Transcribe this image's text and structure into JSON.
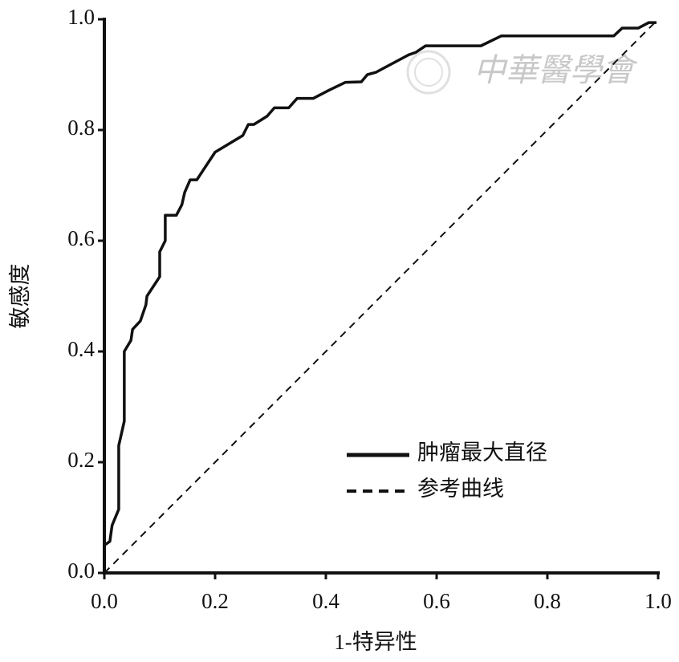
{
  "chart_data": {
    "type": "line",
    "xlabel": "1-特异性",
    "ylabel": "敏感度",
    "watermark": "中華醫學會",
    "xlim": [
      0,
      1
    ],
    "ylim": [
      0,
      1
    ],
    "xticks": [
      {
        "value": 0,
        "label": "0.0"
      },
      0.2,
      0.4,
      0.6,
      0.8,
      {
        "value": 1,
        "label": "1.0"
      }
    ],
    "yticks": [
      {
        "value": 0,
        "label": "0.0"
      },
      0.2,
      0.4,
      0.6,
      0.8,
      {
        "value": 1,
        "label": "1.0"
      }
    ],
    "grid": false,
    "legend": "lower right",
    "series": [
      {
        "name": "肿瘤最大直径",
        "color": "#111111",
        "style": "solid",
        "x": [
          0,
          0,
          0.01,
          0.014,
          0.026,
          0.026,
          0.036,
          0.036,
          0.048,
          0.051,
          0.065,
          0.075,
          0.077,
          0.1,
          0.1,
          0.11,
          0.11,
          0.13,
          0.14,
          0.145,
          0.155,
          0.167,
          0.2,
          0.25,
          0.26,
          0.27,
          0.294,
          0.307,
          0.333,
          0.348,
          0.377,
          0.406,
          0.435,
          0.464,
          0.475,
          0.49,
          0.55,
          0.562,
          0.58,
          0.68,
          0.717,
          0.92,
          0.935,
          0.964,
          0.983,
          0.997
        ],
        "values": [
          0,
          0.05,
          0.057,
          0.086,
          0.115,
          0.23,
          0.274,
          0.4,
          0.42,
          0.44,
          0.455,
          0.484,
          0.5,
          0.535,
          0.58,
          0.6,
          0.646,
          0.646,
          0.665,
          0.687,
          0.71,
          0.71,
          0.76,
          0.79,
          0.81,
          0.81,
          0.825,
          0.84,
          0.84,
          0.857,
          0.857,
          0.872,
          0.886,
          0.887,
          0.9,
          0.904,
          0.936,
          0.94,
          0.952,
          0.952,
          0.97,
          0.97,
          0.984,
          0.984,
          0.994,
          0.994
        ]
      },
      {
        "name": "参考曲线",
        "color": "#111111",
        "style": "dashed",
        "x": [
          0,
          1
        ],
        "values": [
          0,
          1
        ]
      }
    ]
  }
}
